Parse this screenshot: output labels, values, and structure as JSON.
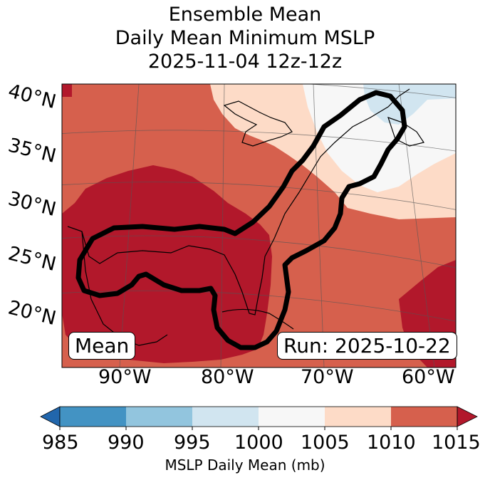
{
  "title": {
    "line1": "Ensemble Mean",
    "line2": "Daily Mean Minimum MSLP",
    "line3": "2025-11-04 12z-12z"
  },
  "map": {
    "latitude_labels": [
      "40°N",
      "35°N",
      "30°N",
      "25°N",
      "20°N"
    ],
    "longitude_labels": [
      "90°W",
      "80°W",
      "70°W",
      "60°W"
    ],
    "mean_label": "Mean",
    "run_label": "Run: 2025-10-22"
  },
  "colorbar": {
    "ticks": [
      "985",
      "990",
      "995",
      "1000",
      "1005",
      "1010",
      "1015"
    ],
    "label": "MSLP Daily Mean (mb)",
    "colors": {
      "below_985": "#2166ac",
      "985_990": "#4393c3",
      "990_995": "#92c5de",
      "995_1000": "#d1e5f0",
      "1000_1005": "#f7f7f7",
      "1005_1010": "#fddbc7",
      "1010_1015": "#d6604d",
      "above_1015": "#b2182b"
    }
  }
}
